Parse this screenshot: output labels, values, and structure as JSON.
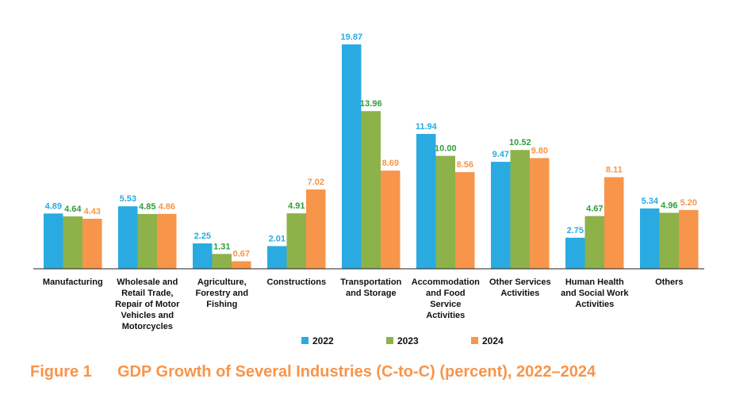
{
  "figure": {
    "number": "Figure 1",
    "title": "GDP Growth of Several Industries (C-to-C) (percent), 2022–2024"
  },
  "colors": {
    "series_2022": "#29abe2",
    "series_2023": "#8db24a",
    "series_2024": "#f7954a",
    "label_2022": "#29abe2",
    "label_2023": "#2e9e3a",
    "label_2024": "#f7954a",
    "caption": "#f7954a",
    "axis": "#222222"
  },
  "chart_data": {
    "type": "bar",
    "title": "GDP Growth of Several Industries (C-to-C) (percent), 2022–2024",
    "xlabel": "",
    "ylabel": "",
    "ylim": [
      0,
      20.5
    ],
    "grid": false,
    "legend_position": "bottom",
    "categories": [
      [
        "Manufacturing"
      ],
      [
        "Wholesale and",
        "Retail Trade,",
        "Repair of Motor",
        "Vehicles and",
        "Motorcycles"
      ],
      [
        "Agriculture,",
        "Forestry and",
        "Fishing"
      ],
      [
        "Constructions"
      ],
      [
        "Transportation",
        "and Storage"
      ],
      [
        "Accommodation",
        "and Food",
        "Service",
        "Activities"
      ],
      [
        "Other Services",
        "Activities"
      ],
      [
        "Human Health",
        "and Social Work",
        "Activities"
      ],
      [
        "Others"
      ]
    ],
    "series": [
      {
        "name": "2022",
        "values": [
          4.89,
          5.53,
          2.25,
          2.01,
          19.87,
          11.94,
          9.47,
          2.75,
          5.34
        ],
        "labels": [
          "4.89",
          "5.53",
          "2.25",
          "2.01",
          "19.87",
          "11.94",
          "9.47",
          "2.75",
          "5.34"
        ]
      },
      {
        "name": "2023",
        "values": [
          4.64,
          4.85,
          1.31,
          4.91,
          13.96,
          10.0,
          10.52,
          4.67,
          4.96
        ],
        "labels": [
          "4.64",
          "4.85",
          "1.31",
          "4.91",
          "13.96",
          "10.00",
          "10.52",
          "4.67",
          "4.96"
        ]
      },
      {
        "name": "2024",
        "values": [
          4.43,
          4.86,
          0.67,
          7.02,
          8.69,
          8.56,
          9.8,
          8.11,
          5.2
        ],
        "labels": [
          "4.43",
          "4.86",
          "0.67",
          "7.02",
          "8.69",
          "8.56",
          "9.80",
          "8.11",
          "5.20"
        ]
      }
    ]
  }
}
